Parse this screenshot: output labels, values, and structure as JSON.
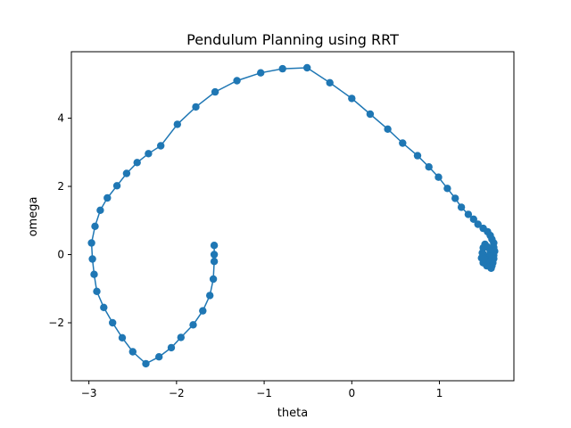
{
  "chart_data": {
    "type": "line",
    "title": "Pendulum Planning using RRT",
    "xlabel": "theta",
    "ylabel": "omega",
    "xlim": [
      -3.2,
      1.85
    ],
    "ylim": [
      -3.7,
      5.95
    ],
    "xticks": [
      -3,
      -2,
      -1,
      0,
      1
    ],
    "yticks": [
      -2,
      0,
      2,
      4
    ],
    "grid": false,
    "colors": {
      "series": "#1f77b4"
    },
    "series": [
      {
        "markers": true,
        "points": [
          [
            -1.57,
            0.27
          ],
          [
            -1.57,
            0.0
          ],
          [
            -1.57,
            -0.2
          ],
          [
            -1.58,
            -0.72
          ],
          [
            -1.62,
            -1.2
          ],
          [
            -1.7,
            -1.65
          ],
          [
            -1.81,
            -2.06
          ],
          [
            -1.95,
            -2.43
          ],
          [
            -2.06,
            -2.73
          ],
          [
            -2.2,
            -3.0
          ],
          [
            -2.35,
            -3.2
          ],
          [
            -2.5,
            -2.85
          ],
          [
            -2.62,
            -2.44
          ],
          [
            -2.73,
            -2.0
          ],
          [
            -2.83,
            -1.55
          ],
          [
            -2.91,
            -1.08
          ],
          [
            -2.94,
            -0.58
          ],
          [
            -2.96,
            -0.13
          ],
          [
            -2.97,
            0.34
          ],
          [
            -2.93,
            0.83
          ],
          [
            -2.87,
            1.3
          ],
          [
            -2.79,
            1.66
          ],
          [
            -2.68,
            2.02
          ],
          [
            -2.57,
            2.38
          ],
          [
            -2.45,
            2.7
          ],
          [
            -2.32,
            2.96
          ],
          [
            -2.18,
            3.19
          ],
          [
            -1.99,
            3.82
          ],
          [
            -1.78,
            4.33
          ],
          [
            -1.56,
            4.77
          ],
          [
            -1.31,
            5.1
          ],
          [
            -1.04,
            5.33
          ],
          [
            -0.79,
            5.45
          ],
          [
            -0.51,
            5.48
          ],
          [
            -0.25,
            5.04
          ],
          [
            0.0,
            4.58
          ],
          [
            0.21,
            4.12
          ],
          [
            0.41,
            3.68
          ],
          [
            0.58,
            3.27
          ],
          [
            0.75,
            2.9
          ],
          [
            0.88,
            2.57
          ],
          [
            0.99,
            2.27
          ],
          [
            1.09,
            1.94
          ],
          [
            1.18,
            1.65
          ],
          [
            1.25,
            1.39
          ],
          [
            1.33,
            1.18
          ],
          [
            1.39,
            1.04
          ],
          [
            1.44,
            0.89
          ],
          [
            1.5,
            0.77
          ],
          [
            1.55,
            0.67
          ],
          [
            1.58,
            0.56
          ],
          [
            1.6,
            0.45
          ],
          [
            1.62,
            0.34
          ],
          [
            1.62,
            0.21
          ],
          [
            1.63,
            0.1
          ],
          [
            1.62,
            -0.02
          ],
          [
            1.62,
            -0.12
          ],
          [
            1.61,
            -0.24
          ],
          [
            1.6,
            -0.33
          ],
          [
            1.59,
            -0.4
          ],
          [
            1.57,
            -0.3
          ],
          [
            1.54,
            -0.33
          ],
          [
            1.5,
            -0.24
          ],
          [
            1.48,
            -0.1
          ],
          [
            1.49,
            0.05
          ],
          [
            1.5,
            0.2
          ],
          [
            1.52,
            0.3
          ],
          [
            1.55,
            0.22
          ],
          [
            1.58,
            0.1
          ],
          [
            1.57,
            -0.05
          ],
          [
            1.55,
            -0.15
          ],
          [
            1.52,
            -0.05
          ],
          [
            1.5,
            0.02
          ],
          [
            1.51,
            -0.12
          ]
        ]
      }
    ]
  }
}
